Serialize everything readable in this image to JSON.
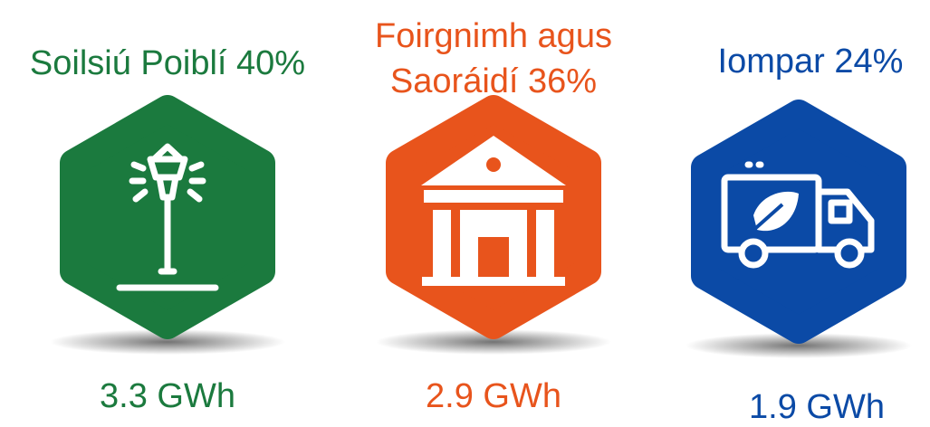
{
  "items": [
    {
      "label": [
        "Soilsiú Poiblí 40%"
      ],
      "value": "3.3 GWh",
      "color": "#1b7a3e"
    },
    {
      "label": [
        "Foirgnimh agus",
        "Saoráidí 36%"
      ],
      "value": "2.9 GWh",
      "color": "#e8541c"
    },
    {
      "label": [
        "Iompar 24%"
      ],
      "value": "1.9 GWh",
      "color": "#0b4aa6"
    }
  ]
}
